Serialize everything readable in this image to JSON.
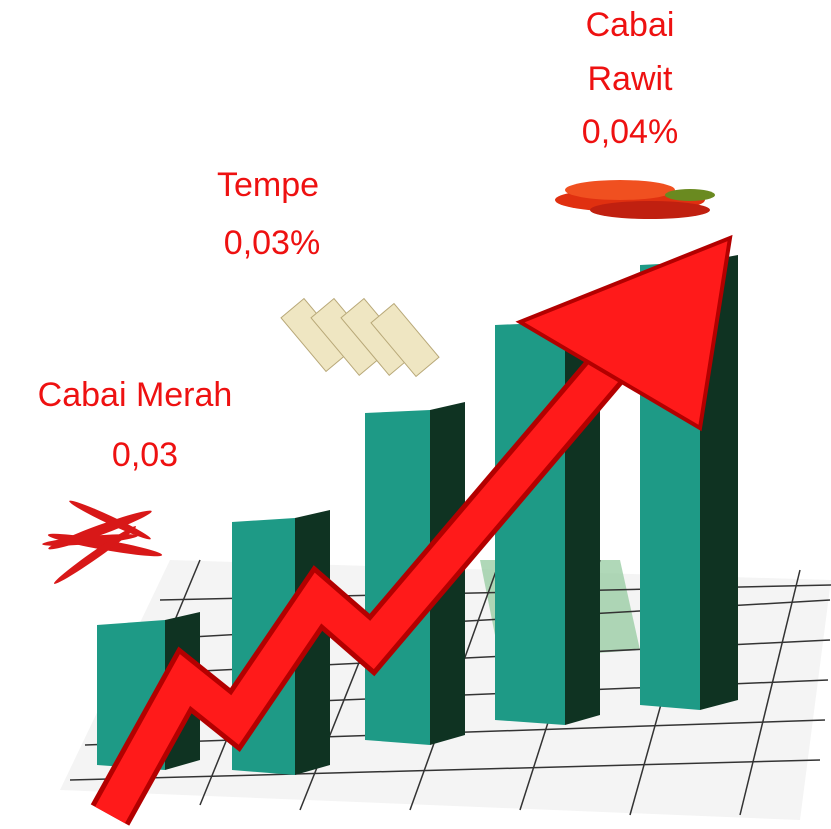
{
  "items": [
    {
      "name": "Cabai Merah",
      "value": "0,03"
    },
    {
      "name": "Tempe",
      "value": "0,03%"
    },
    {
      "name": "Cabai Rawit",
      "value": "0,04%"
    }
  ]
}
